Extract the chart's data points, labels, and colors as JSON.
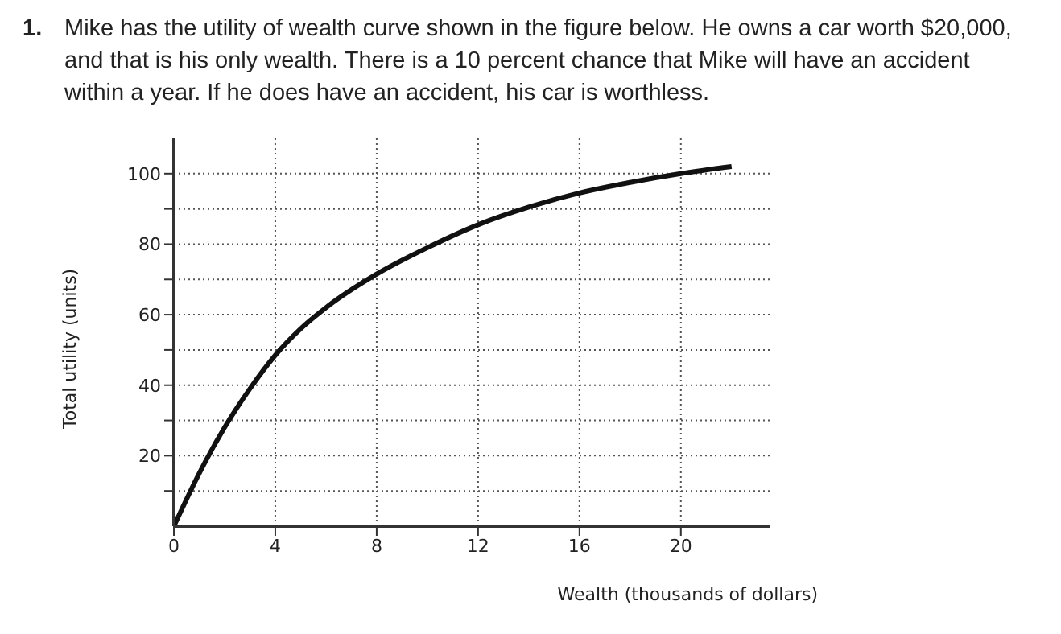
{
  "chart_data": {
    "type": "line",
    "title": "Mike has the utility of wealth curve shown in the figure below. He owns a car worth $20,000, and that is his only wealth. There is a 10 percent chance that Mike will have an accident within a year. If he does have an accident, his car is worthless.",
    "annotations": [
      "1."
    ],
    "xlabel": "Wealth (thousands of dollars)",
    "ylabel": "Total utility (units)",
    "x": [
      0,
      1,
      2,
      3,
      4,
      5,
      6,
      8,
      10,
      12,
      14,
      16,
      18,
      20,
      22
    ],
    "series": [
      {
        "color": "#111111",
        "values": [
          0,
          15,
          28,
          39,
          48.5,
          56,
          62,
          71.5,
          79,
          85.5,
          90.5,
          94.5,
          97.5,
          100,
          102
        ]
      }
    ],
    "xlim": [
      0,
      23.5
    ],
    "xticks": [
      0,
      4,
      8,
      12,
      16,
      20
    ],
    "ylim": [
      0,
      110
    ],
    "yticks": [
      {
        "value": 10,
        "label": null
      },
      20,
      {
        "value": 30,
        "label": null
      },
      40,
      {
        "value": 50,
        "label": null
      },
      60,
      {
        "value": 70,
        "label": null
      },
      80,
      {
        "value": 90,
        "label": null
      },
      100
    ],
    "grid": true,
    "line_style": "solid",
    "marker": "none",
    "legend": false
  }
}
